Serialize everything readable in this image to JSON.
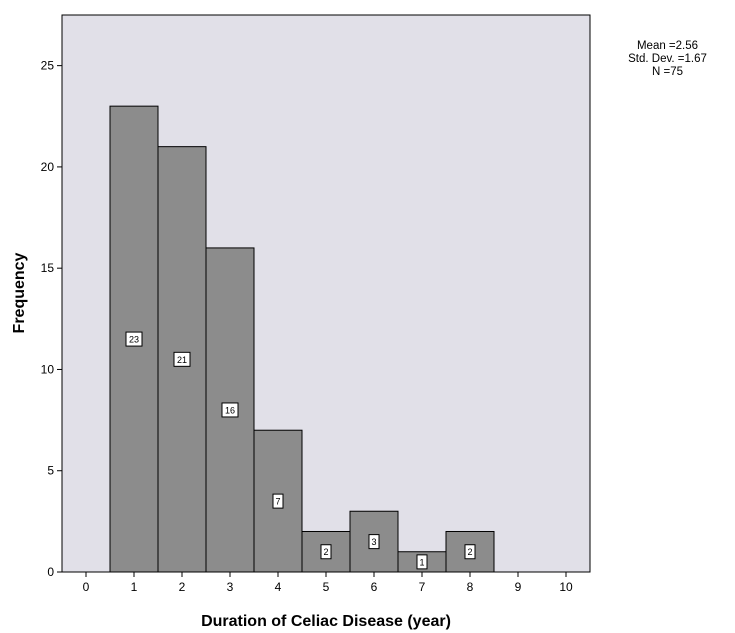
{
  "chart_data": {
    "type": "bar",
    "subtype": "histogram",
    "xlabel": "Duration of Celiac Disease (year)",
    "ylabel": "Frequency",
    "categories": [
      "1",
      "2",
      "3",
      "4",
      "5",
      "6",
      "7",
      "8"
    ],
    "x": [
      1,
      2,
      3,
      4,
      5,
      6,
      7,
      8
    ],
    "values": [
      23,
      21,
      16,
      7,
      2,
      3,
      1,
      2
    ],
    "data_labels": [
      "23",
      "21",
      "16",
      "7",
      "2",
      "3",
      "1",
      "2"
    ],
    "bin_width": 1,
    "xlim": [
      -0.5,
      10.5
    ],
    "ylim": [
      0,
      27.5
    ],
    "xticks": [
      "0",
      "1",
      "2",
      "3",
      "4",
      "5",
      "6",
      "7",
      "8",
      "9",
      "10"
    ],
    "yticks": [
      "0",
      "5",
      "10",
      "15",
      "20",
      "25"
    ],
    "grid": false,
    "bar_color": "#8c8c8c",
    "plot_background": "#e1e0e8",
    "stats": {
      "mean": "Mean =2.56",
      "std": "Std. Dev. =1.67",
      "n": "N =75"
    }
  }
}
